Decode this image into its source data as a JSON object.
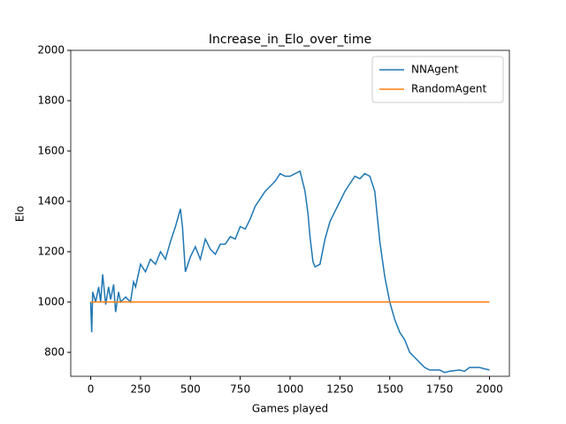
{
  "chart_data": {
    "type": "line",
    "title": "Increase_in_Elo_over_time",
    "xlabel": "Games played",
    "ylabel": "Elo",
    "xlim": [
      -100,
      2100
    ],
    "ylim": [
      705,
      2000
    ],
    "xticks": [
      0,
      250,
      500,
      750,
      1000,
      1250,
      1500,
      1750,
      2000
    ],
    "yticks": [
      800,
      1000,
      1200,
      1400,
      1600,
      1800,
      2000
    ],
    "legend": "upper right",
    "series": [
      {
        "name": "NNAgent",
        "color": "#1f77b4",
        "x": [
          0,
          5,
          10,
          25,
          40,
          50,
          60,
          75,
          90,
          100,
          115,
          125,
          140,
          150,
          175,
          200,
          215,
          225,
          250,
          275,
          300,
          325,
          350,
          375,
          400,
          425,
          450,
          460,
          475,
          500,
          525,
          550,
          575,
          600,
          625,
          650,
          675,
          700,
          725,
          750,
          775,
          800,
          825,
          850,
          875,
          900,
          925,
          950,
          975,
          1000,
          1025,
          1050,
          1075,
          1090,
          1100,
          1115,
          1125,
          1150,
          1175,
          1200,
          1225,
          1250,
          1275,
          1300,
          1325,
          1350,
          1375,
          1400,
          1425,
          1450,
          1475,
          1500,
          1525,
          1550,
          1575,
          1600,
          1625,
          1650,
          1675,
          1700,
          1750,
          1775,
          1800,
          1850,
          1875,
          1900,
          1950,
          1975,
          2000
        ],
        "values": [
          1000,
          880,
          1040,
          1000,
          1060,
          1000,
          1110,
          990,
          1060,
          1010,
          1070,
          960,
          1040,
          1000,
          1020,
          1000,
          1080,
          1060,
          1150,
          1120,
          1170,
          1150,
          1200,
          1170,
          1240,
          1300,
          1370,
          1300,
          1120,
          1180,
          1220,
          1170,
          1250,
          1210,
          1190,
          1230,
          1230,
          1260,
          1250,
          1300,
          1290,
          1330,
          1380,
          1410,
          1440,
          1460,
          1480,
          1510,
          1500,
          1500,
          1510,
          1520,
          1440,
          1350,
          1260,
          1160,
          1140,
          1150,
          1250,
          1320,
          1360,
          1400,
          1440,
          1470,
          1500,
          1490,
          1510,
          1500,
          1440,
          1240,
          1100,
          1000,
          930,
          880,
          850,
          800,
          780,
          760,
          740,
          730,
          730,
          720,
          725,
          730,
          725,
          740,
          740,
          735,
          730
        ]
      },
      {
        "name": "RandomAgent",
        "color": "#ff7f0e",
        "x": [
          0,
          2000
        ],
        "values": [
          1000,
          1000
        ]
      }
    ]
  }
}
